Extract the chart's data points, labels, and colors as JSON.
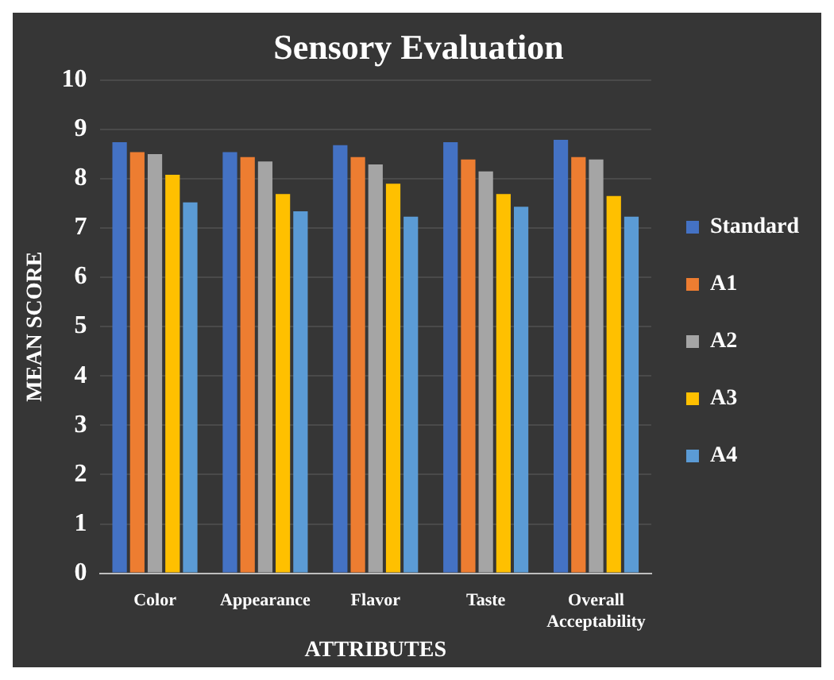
{
  "chart_data": {
    "type": "bar",
    "title": "Sensory Evaluation",
    "xlabel": "ATTRIBUTES",
    "ylabel": "MEAN SCORE",
    "categories": [
      "Color",
      "Appearance",
      "Flavor",
      "Taste",
      "Overall Acceptability"
    ],
    "series": [
      {
        "name": "Standard",
        "color": "#4472c4",
        "values": [
          8.74,
          8.54,
          8.68,
          8.74,
          8.79
        ]
      },
      {
        "name": "A1",
        "color": "#ed7d31",
        "values": [
          8.54,
          8.44,
          8.44,
          8.39,
          8.44
        ]
      },
      {
        "name": "A2",
        "color": "#a5a5a5",
        "values": [
          8.5,
          8.35,
          8.29,
          8.15,
          8.39
        ]
      },
      {
        "name": "A3",
        "color": "#ffc000",
        "values": [
          8.08,
          7.69,
          7.9,
          7.69,
          7.65
        ]
      },
      {
        "name": "A4",
        "color": "#5b9bd5",
        "values": [
          7.52,
          7.34,
          7.23,
          7.43,
          7.23
        ]
      }
    ],
    "ylim": [
      0,
      10
    ],
    "yticks": [
      0,
      1,
      2,
      3,
      4,
      5,
      6,
      7,
      8,
      9,
      10
    ],
    "grid": "y",
    "legend": "right"
  }
}
